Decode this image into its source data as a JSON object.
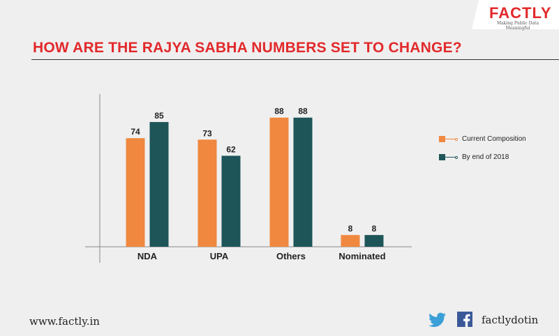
{
  "brand": {
    "logo": "FACTLY",
    "tagline": "Making Public Data Meaningful"
  },
  "title": "HOW ARE THE RAJYA SABHA NUMBERS SET TO CHANGE?",
  "footer": {
    "url": "www.factly.in",
    "handle": "factlydotin"
  },
  "colors": {
    "current": "#f0883f",
    "end2018": "#1e5559",
    "title": "#e2292b"
  },
  "chart_data": {
    "type": "bar",
    "categories": [
      "NDA",
      "UPA",
      "Others",
      "Nominated"
    ],
    "series": [
      {
        "name": "Current Composition",
        "values": [
          74,
          73,
          88,
          8
        ]
      },
      {
        "name": "By end of 2018",
        "values": [
          85,
          62,
          88,
          8
        ]
      }
    ],
    "ylim": [
      0,
      95
    ],
    "legend_position": "right",
    "grid": false
  }
}
